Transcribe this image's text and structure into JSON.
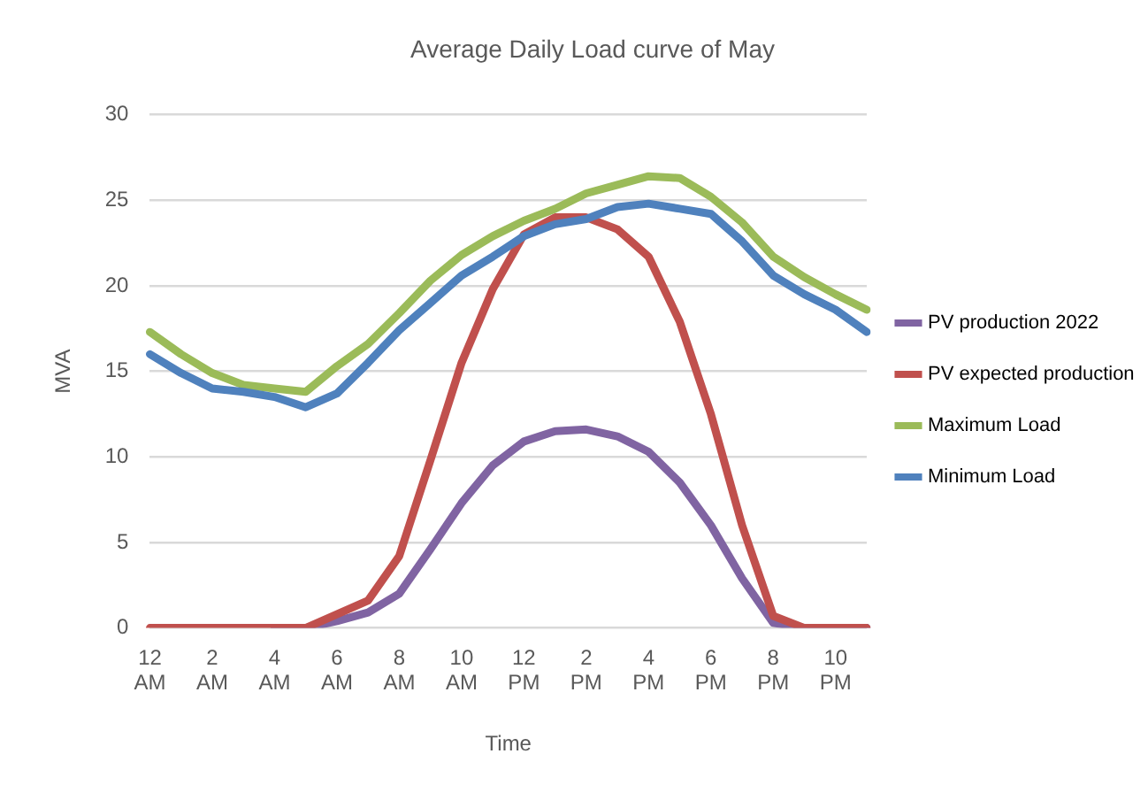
{
  "chart_data": {
    "type": "line",
    "title": "Average Daily Load curve of May",
    "xlabel": "Time",
    "ylabel": "MVA",
    "categories": [
      "12 AM",
      null,
      "2 AM",
      null,
      "4 AM",
      null,
      "6 AM",
      null,
      "8 AM",
      null,
      "10 AM",
      null,
      "12 PM",
      null,
      "2 PM",
      null,
      "4 PM",
      null,
      "6 PM",
      null,
      "8 PM",
      null,
      "10 PM",
      null
    ],
    "series": [
      {
        "name": "PV production 2022",
        "color": "#8064a2",
        "values": [
          null,
          null,
          null,
          null,
          0,
          0,
          0.4,
          0.9,
          2.0,
          4.6,
          7.3,
          9.5,
          10.9,
          11.5,
          11.6,
          11.2,
          10.3,
          8.5,
          6.0,
          2.9,
          0.3,
          0,
          0,
          0
        ]
      },
      {
        "name": "PV expected production",
        "color": "#c0504d",
        "values": [
          0,
          0,
          0,
          0,
          0,
          0,
          0.8,
          1.6,
          4.2,
          9.8,
          15.5,
          19.8,
          23.0,
          24.0,
          24.0,
          23.3,
          21.7,
          17.9,
          12.5,
          6.0,
          0.7,
          0,
          0,
          0
        ]
      },
      {
        "name": "Maximum Load",
        "color": "#9bbb59",
        "values": [
          17.3,
          16.0,
          14.9,
          14.2,
          14.0,
          13.8,
          15.3,
          16.6,
          18.4,
          20.3,
          21.8,
          22.9,
          23.8,
          24.5,
          25.4,
          25.9,
          26.4,
          26.3,
          25.2,
          23.7,
          21.7,
          20.5,
          19.5,
          18.6
        ]
      },
      {
        "name": "Minimum Load",
        "color": "#4f81bd",
        "values": [
          16.0,
          14.9,
          14.0,
          13.8,
          13.5,
          12.9,
          13.7,
          15.5,
          17.4,
          19.0,
          20.6,
          21.7,
          22.9,
          23.6,
          23.9,
          24.6,
          24.8,
          24.5,
          24.2,
          22.6,
          20.6,
          19.5,
          18.6,
          17.3
        ]
      }
    ],
    "ylim": [
      0,
      30
    ],
    "yticks": [
      0,
      5,
      10,
      15,
      20,
      25,
      30
    ],
    "grid": "y",
    "legend": "right",
    "marker": "none",
    "line_style": "solid"
  }
}
